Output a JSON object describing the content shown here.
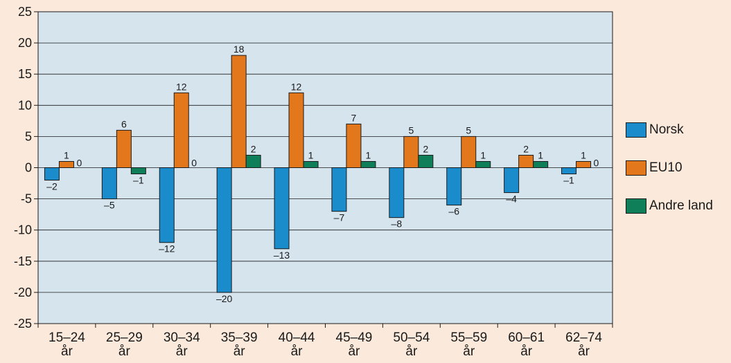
{
  "chart_data": {
    "type": "bar",
    "title": "",
    "xlabel": "",
    "ylabel": "",
    "ylim": [
      -25,
      25
    ],
    "yticks": [
      25,
      20,
      15,
      10,
      5,
      0,
      -5,
      -10,
      -15,
      -20,
      -25
    ],
    "ytick_labels": [
      "25",
      "20",
      "15",
      "10",
      "5",
      "0",
      "-5",
      "-10",
      "-15",
      "-20",
      "-25"
    ],
    "grid": true,
    "legend_position": "right",
    "categories": [
      [
        "15–24",
        "år"
      ],
      [
        "25–29",
        "år"
      ],
      [
        "30–34",
        "år"
      ],
      [
        "35–39",
        "år"
      ],
      [
        "40–44",
        "år"
      ],
      [
        "45–49",
        "år"
      ],
      [
        "50–54",
        "år"
      ],
      [
        "55–59",
        "år"
      ],
      [
        "60–61",
        "år"
      ],
      [
        "62–74",
        "år"
      ]
    ],
    "series": [
      {
        "name": "Norsk",
        "color": "#1a8ccb",
        "values": [
          -2,
          -5,
          -12,
          -20,
          -13,
          -7,
          -8,
          -6,
          -4,
          -1
        ],
        "labels": [
          "–2",
          "–5",
          "–12",
          "–20",
          "–13",
          "–7",
          "–8",
          "–6",
          "–4",
          "–1"
        ]
      },
      {
        "name": "EU10",
        "color": "#e2781b",
        "values": [
          1,
          6,
          12,
          18,
          12,
          7,
          5,
          5,
          2,
          1
        ],
        "labels": [
          "1",
          "6",
          "12",
          "18",
          "12",
          "7",
          "5",
          "5",
          "2",
          "1"
        ]
      },
      {
        "name": "Andre land",
        "color": "#0f7f5a",
        "values": [
          0,
          -1,
          0,
          2,
          1,
          1,
          2,
          1,
          1,
          0
        ],
        "labels": [
          "0",
          "–1",
          "0",
          "2",
          "1",
          "1",
          "2",
          "1",
          "1",
          "0"
        ]
      }
    ],
    "plot_background": "#d6e4ee",
    "page_background": "#fbeadb"
  }
}
